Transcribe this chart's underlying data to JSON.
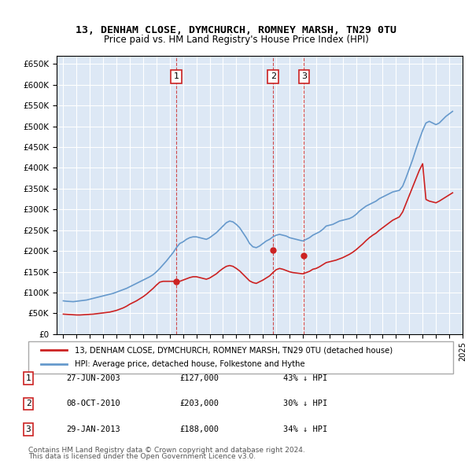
{
  "title": "13, DENHAM CLOSE, DYMCHURCH, ROMNEY MARSH, TN29 0TU",
  "subtitle": "Price paid vs. HM Land Registry's House Price Index (HPI)",
  "bg_color": "#dde8f5",
  "plot_bg": "#dde8f5",
  "legend1": "13, DENHAM CLOSE, DYMCHURCH, ROMNEY MARSH, TN29 0TU (detached house)",
  "legend2": "HPI: Average price, detached house, Folkestone and Hythe",
  "footnote1": "Contains HM Land Registry data © Crown copyright and database right 2024.",
  "footnote2": "This data is licensed under the Open Government Licence v3.0.",
  "transactions": [
    {
      "num": 1,
      "date": "27-JUN-2003",
      "price": 127000,
      "pct": "43% ↓ HPI",
      "year": 2003.49
    },
    {
      "num": 2,
      "date": "08-OCT-2010",
      "price": 203000,
      "pct": "30% ↓ HPI",
      "year": 2010.77
    },
    {
      "num": 3,
      "date": "29-JAN-2013",
      "price": 188000,
      "pct": "34% ↓ HPI",
      "year": 2013.08
    }
  ],
  "hpi_years": [
    1995,
    1995.25,
    1995.5,
    1995.75,
    1996,
    1996.25,
    1996.5,
    1996.75,
    1997,
    1997.25,
    1997.5,
    1997.75,
    1998,
    1998.25,
    1998.5,
    1998.75,
    1999,
    1999.25,
    1999.5,
    1999.75,
    2000,
    2000.25,
    2000.5,
    2000.75,
    2001,
    2001.25,
    2001.5,
    2001.75,
    2002,
    2002.25,
    2002.5,
    2002.75,
    2003,
    2003.25,
    2003.5,
    2003.75,
    2004,
    2004.25,
    2004.5,
    2004.75,
    2005,
    2005.25,
    2005.5,
    2005.75,
    2006,
    2006.25,
    2006.5,
    2006.75,
    2007,
    2007.25,
    2007.5,
    2007.75,
    2008,
    2008.25,
    2008.5,
    2008.75,
    2009,
    2009.25,
    2009.5,
    2009.75,
    2010,
    2010.25,
    2010.5,
    2010.75,
    2011,
    2011.25,
    2011.5,
    2011.75,
    2012,
    2012.25,
    2012.5,
    2012.75,
    2013,
    2013.25,
    2013.5,
    2013.75,
    2014,
    2014.25,
    2014.5,
    2014.75,
    2015,
    2015.25,
    2015.5,
    2015.75,
    2016,
    2016.25,
    2016.5,
    2016.75,
    2017,
    2017.25,
    2017.5,
    2017.75,
    2018,
    2018.25,
    2018.5,
    2018.75,
    2019,
    2019.25,
    2019.5,
    2019.75,
    2020,
    2020.25,
    2020.5,
    2020.75,
    2021,
    2021.25,
    2021.5,
    2021.75,
    2022,
    2022.25,
    2022.5,
    2022.75,
    2023,
    2023.25,
    2023.5,
    2023.75,
    2024,
    2024.25
  ],
  "hpi_values": [
    80000,
    79000,
    78500,
    78000,
    79000,
    80000,
    81000,
    82000,
    84000,
    86000,
    88000,
    90000,
    92000,
    94000,
    96000,
    98000,
    101000,
    104000,
    107000,
    110000,
    114000,
    118000,
    122000,
    126000,
    130000,
    134000,
    138000,
    143000,
    150000,
    158000,
    167000,
    176000,
    186000,
    196000,
    208000,
    218000,
    222000,
    228000,
    232000,
    234000,
    234000,
    232000,
    230000,
    228000,
    232000,
    238000,
    244000,
    252000,
    260000,
    268000,
    272000,
    270000,
    264000,
    256000,
    244000,
    232000,
    218000,
    210000,
    208000,
    212000,
    218000,
    224000,
    228000,
    234000,
    238000,
    240000,
    238000,
    236000,
    232000,
    230000,
    228000,
    226000,
    224000,
    228000,
    232000,
    238000,
    242000,
    246000,
    252000,
    260000,
    262000,
    264000,
    268000,
    272000,
    274000,
    276000,
    278000,
    282000,
    288000,
    296000,
    302000,
    308000,
    312000,
    316000,
    320000,
    326000,
    330000,
    334000,
    338000,
    342000,
    344000,
    346000,
    356000,
    376000,
    398000,
    420000,
    445000,
    468000,
    490000,
    508000,
    512000,
    508000,
    504000,
    508000,
    516000,
    524000,
    530000,
    536000
  ],
  "price_years": [
    1995,
    1995.25,
    1995.5,
    1995.75,
    1996,
    1996.25,
    1996.5,
    1996.75,
    1997,
    1997.25,
    1997.5,
    1997.75,
    1998,
    1998.25,
    1998.5,
    1998.75,
    1999,
    1999.25,
    1999.5,
    1999.75,
    2000,
    2000.25,
    2000.5,
    2000.75,
    2001,
    2001.25,
    2001.5,
    2001.75,
    2002,
    2002.25,
    2002.5,
    2002.75,
    2003,
    2003.25,
    2003.5,
    2003.75,
    2004,
    2004.25,
    2004.5,
    2004.75,
    2005,
    2005.25,
    2005.5,
    2005.75,
    2006,
    2006.25,
    2006.5,
    2006.75,
    2007,
    2007.25,
    2007.5,
    2007.75,
    2008,
    2008.25,
    2008.5,
    2008.75,
    2009,
    2009.25,
    2009.5,
    2009.75,
    2010,
    2010.25,
    2010.5,
    2010.75,
    2011,
    2011.25,
    2011.5,
    2011.75,
    2012,
    2012.25,
    2012.5,
    2012.75,
    2013,
    2013.25,
    2013.5,
    2013.75,
    2014,
    2014.25,
    2014.5,
    2014.75,
    2015,
    2015.25,
    2015.5,
    2015.75,
    2016,
    2016.25,
    2016.5,
    2016.75,
    2017,
    2017.25,
    2017.5,
    2017.75,
    2018,
    2018.25,
    2018.5,
    2018.75,
    2019,
    2019.25,
    2019.5,
    2019.75,
    2020,
    2020.25,
    2020.5,
    2020.75,
    2021,
    2021.25,
    2021.5,
    2021.75,
    2022,
    2022.25,
    2022.5,
    2022.75,
    2023,
    2023.25,
    2023.5,
    2023.75,
    2024,
    2024.25
  ],
  "price_values": [
    48000,
    47500,
    47000,
    46500,
    46000,
    46000,
    46500,
    47000,
    47500,
    48000,
    49000,
    50000,
    51000,
    52000,
    53000,
    55000,
    57000,
    60000,
    63000,
    67000,
    72000,
    76000,
    80000,
    85000,
    90000,
    96000,
    103000,
    110000,
    118000,
    125000,
    127000,
    127000,
    127000,
    127000,
    127000,
    127000,
    130000,
    133000,
    136000,
    138000,
    138000,
    136000,
    134000,
    132000,
    135000,
    140000,
    145000,
    152000,
    158000,
    163000,
    165000,
    163000,
    158000,
    152000,
    144000,
    136000,
    128000,
    124000,
    122000,
    126000,
    130000,
    135000,
    140000,
    148000,
    155000,
    158000,
    156000,
    153000,
    150000,
    148000,
    147000,
    146000,
    145000,
    148000,
    151000,
    156000,
    158000,
    162000,
    167000,
    172000,
    174000,
    176000,
    178000,
    181000,
    184000,
    188000,
    192000,
    197000,
    203000,
    210000,
    217000,
    225000,
    232000,
    238000,
    243000,
    250000,
    256000,
    262000,
    268000,
    274000,
    278000,
    282000,
    294000,
    314000,
    334000,
    354000,
    374000,
    394000,
    410000,
    324000,
    320000,
    318000,
    316000,
    320000,
    325000,
    330000,
    335000,
    340000
  ]
}
